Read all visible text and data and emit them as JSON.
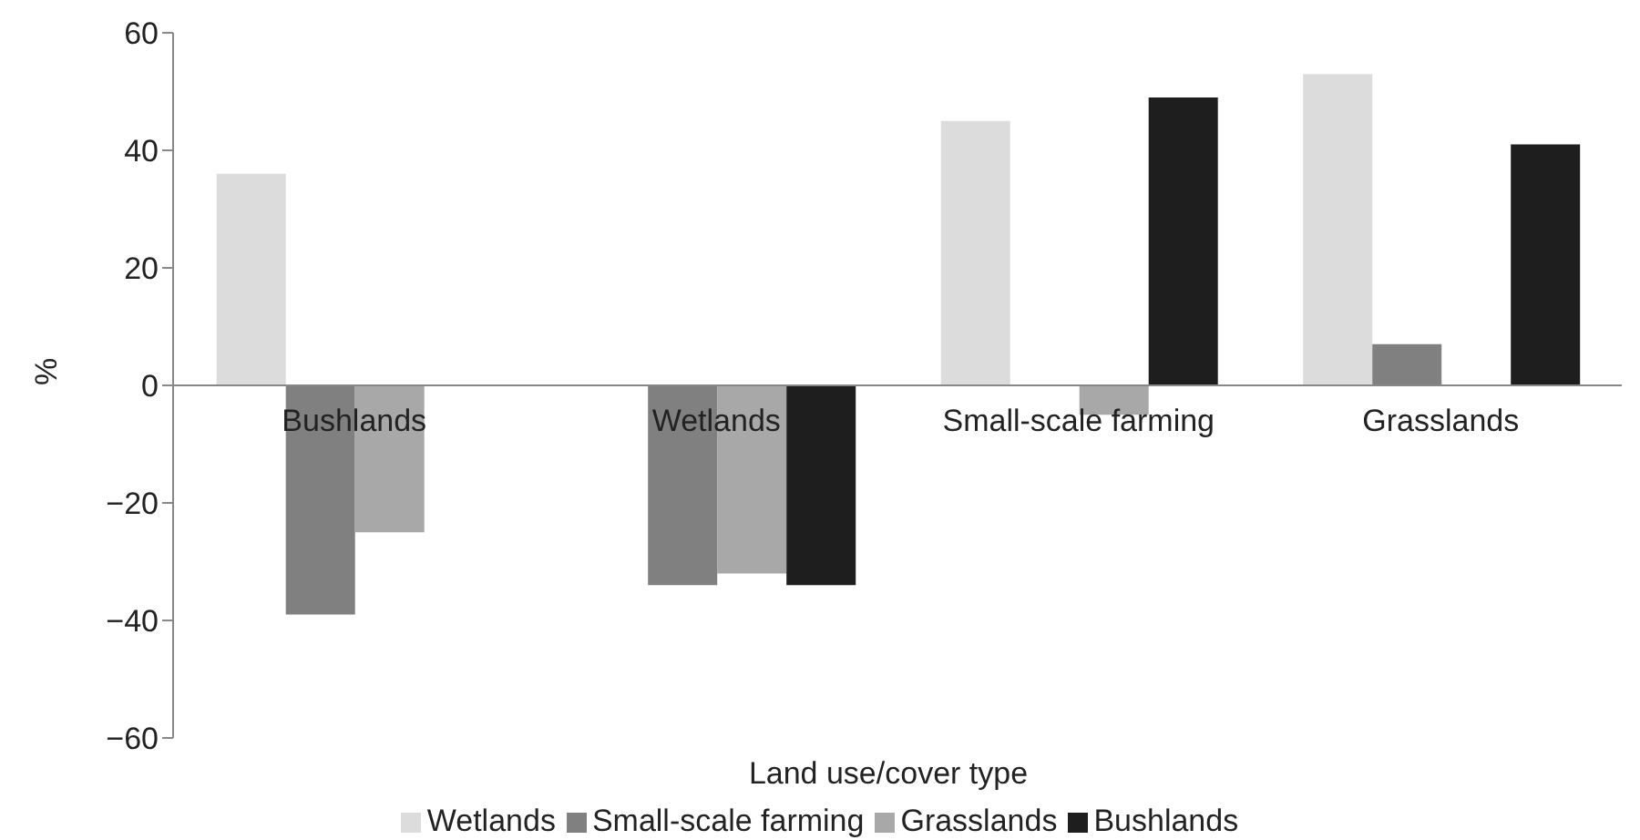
{
  "chart_data": {
    "type": "bar",
    "xlabel": "Land use/cover type",
    "ylabel": "%",
    "categories": [
      "Bushlands",
      "Wetlands",
      "Small-scale farming",
      "Grasslands"
    ],
    "series": [
      {
        "name": "Wetlands",
        "color": "#dcdcdc",
        "values": [
          36,
          null,
          45,
          53
        ]
      },
      {
        "name": "Small-scale farming",
        "color": "#808080",
        "values": [
          -39,
          -34,
          null,
          7
        ]
      },
      {
        "name": "Grasslands",
        "color": "#a8a8a8",
        "values": [
          -25,
          -32,
          -5,
          null
        ]
      },
      {
        "name": "Bushlands",
        "color": "#1e1e1e",
        "values": [
          null,
          -34,
          49,
          41
        ]
      }
    ],
    "ylim": [
      -60,
      60
    ],
    "yticks": [
      {
        "value": -60,
        "label": "−60"
      },
      {
        "value": -40,
        "label": "−40"
      },
      {
        "value": -20,
        "label": "−20"
      },
      0,
      20,
      40,
      60
    ],
    "legend": "bottom"
  }
}
